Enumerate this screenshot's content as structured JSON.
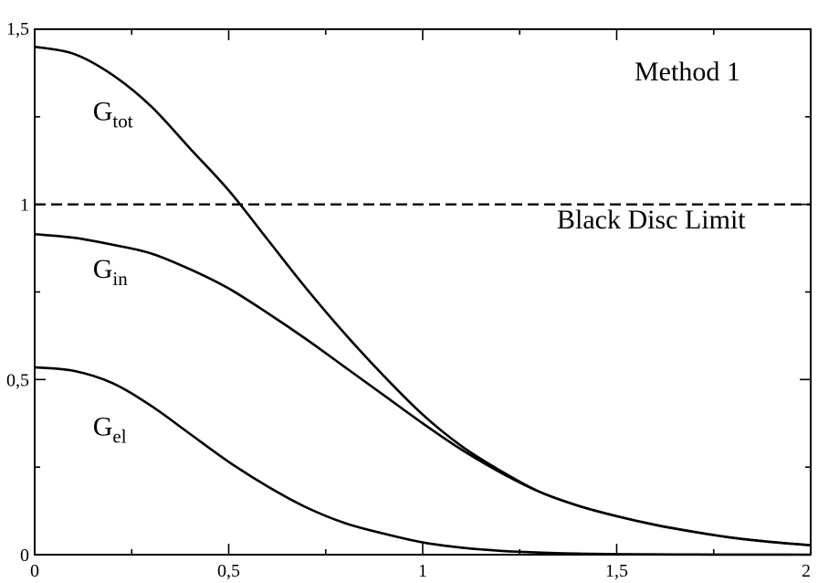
{
  "chart_data": {
    "type": "line",
    "title": "",
    "xlabel": "",
    "ylabel": "",
    "xlim": [
      0,
      2
    ],
    "ylim": [
      0,
      1.5
    ],
    "grid": false,
    "x_ticks": [
      0,
      0.5,
      1,
      1.5,
      2
    ],
    "x_tick_labels": [
      "0",
      "0,5",
      "1",
      "1,5",
      "2"
    ],
    "y_ticks": [
      0,
      0.5,
      1,
      1.5
    ],
    "y_tick_labels": [
      "0",
      "0,5",
      "1",
      "1,5"
    ],
    "x": [
      0,
      0.1,
      0.2,
      0.3,
      0.4,
      0.5,
      0.6,
      0.7,
      0.8,
      0.9,
      1.0,
      1.1,
      1.2,
      1.3,
      1.4,
      1.5,
      1.6,
      1.7,
      1.8,
      1.9,
      2.0
    ],
    "series": [
      {
        "key": "G_tot",
        "color": "#000000",
        "stroke": "solid",
        "values": [
          1.45,
          1.43,
          1.37,
          1.28,
          1.16,
          1.04,
          0.9,
          0.76,
          0.63,
          0.51,
          0.4,
          0.31,
          0.24,
          0.18,
          0.14,
          0.11,
          0.085,
          0.065,
          0.048,
          0.036,
          0.027
        ]
      },
      {
        "key": "G_in",
        "color": "#000000",
        "stroke": "solid",
        "values": [
          0.915,
          0.905,
          0.885,
          0.86,
          0.815,
          0.76,
          0.69,
          0.615,
          0.535,
          0.455,
          0.375,
          0.3,
          0.235,
          0.18,
          0.14,
          0.11,
          0.085,
          0.065,
          0.048,
          0.036,
          0.027
        ]
      },
      {
        "key": "G_el",
        "color": "#000000",
        "stroke": "solid",
        "values": [
          0.535,
          0.525,
          0.49,
          0.425,
          0.345,
          0.265,
          0.195,
          0.135,
          0.09,
          0.06,
          0.035,
          0.02,
          0.011,
          0.006,
          0.003,
          0.0015,
          0.0008,
          0.0004,
          0.0002,
          0.0001,
          0.0
        ]
      }
    ],
    "reference_line": {
      "y": 1,
      "stroke": "dashed",
      "label": "Black Disc Limit"
    },
    "annotations": {
      "method": "Method 1",
      "tot": {
        "main": "G",
        "sub": "tot",
        "x": 0.15,
        "y": 1.24
      },
      "in": {
        "main": "G",
        "sub": "in",
        "x": 0.15,
        "y": 0.79
      },
      "el": {
        "main": "G",
        "sub": "el",
        "x": 0.15,
        "y": 0.34
      }
    }
  }
}
